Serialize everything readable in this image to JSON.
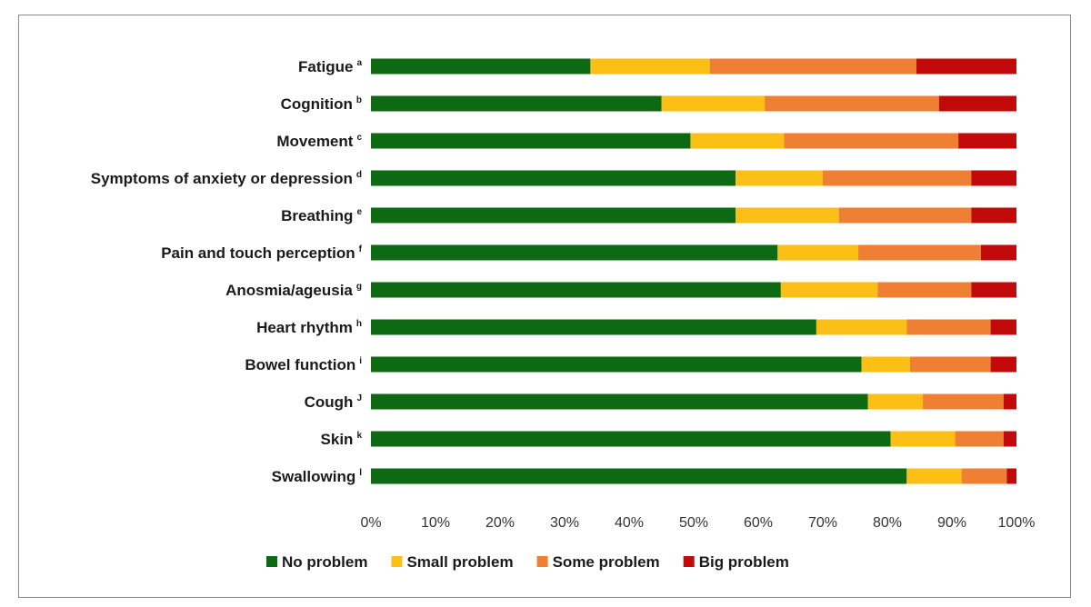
{
  "chart_data": {
    "type": "bar",
    "orientation": "horizontal",
    "stacked": true,
    "categories": [
      {
        "label": "Fatigue",
        "sup": "a"
      },
      {
        "label": "Cognition",
        "sup": "b"
      },
      {
        "label": "Movement",
        "sup": "c"
      },
      {
        "label": "Symptoms of anxiety or depression",
        "sup": "d"
      },
      {
        "label": "Breathing",
        "sup": "e"
      },
      {
        "label": "Pain and touch perception",
        "sup": "f"
      },
      {
        "label": "Anosmia/ageusia",
        "sup": "g"
      },
      {
        "label": "Heart rhythm",
        "sup": "h"
      },
      {
        "label": "Bowel function",
        "sup": "i"
      },
      {
        "label": "Cough",
        "sup": "J"
      },
      {
        "label": "Skin",
        "sup": "k"
      },
      {
        "label": "Swallowing",
        "sup": "l"
      }
    ],
    "series": [
      {
        "name": "No problem",
        "color": "#0e6a12",
        "values": [
          34,
          45,
          49.5,
          56.5,
          56.5,
          63,
          63.5,
          69,
          76,
          77,
          80.5,
          83
        ]
      },
      {
        "name": "Small problem",
        "color": "#fbbf15",
        "values": [
          18.5,
          16,
          14.5,
          13.5,
          16,
          12.5,
          15,
          14,
          7.5,
          8.5,
          10,
          8.5
        ]
      },
      {
        "name": "Some problem",
        "color": "#ef7f33",
        "values": [
          32,
          27,
          27,
          23,
          20.5,
          19,
          14.5,
          13,
          12.5,
          12.5,
          7.5,
          7
        ]
      },
      {
        "name": "Big problem",
        "color": "#c20a0a",
        "values": [
          15.5,
          12,
          9,
          7,
          7,
          5.5,
          7,
          4,
          4,
          2,
          2,
          1.5
        ]
      }
    ],
    "xlim": [
      0,
      100
    ],
    "x_ticks": [
      "0%",
      "10%",
      "20%",
      "30%",
      "40%",
      "50%",
      "60%",
      "70%",
      "80%",
      "90%",
      "100%"
    ],
    "grid": false,
    "legend_position": "bottom"
  }
}
